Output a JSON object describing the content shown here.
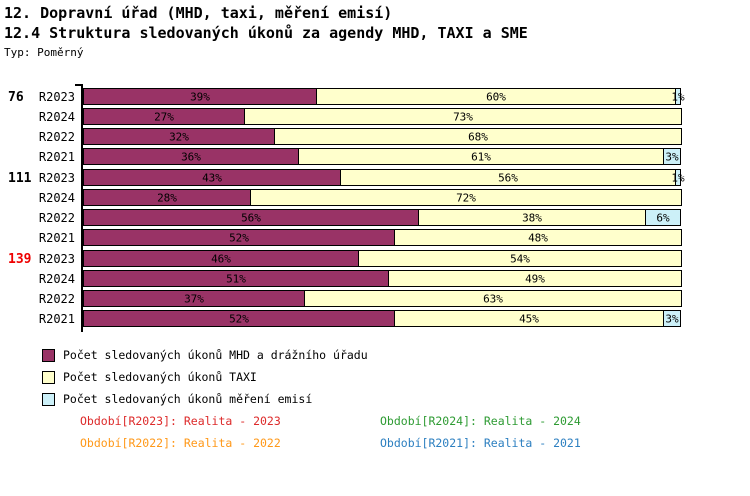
{
  "header": {
    "title_line1": "12. Dopravní úřad (MHD, taxi, měření emisí)",
    "title_line2": "12.4 Struktura sledovaných úkonů za agendy MHD, TAXI a SME",
    "type_label": "Typ: Poměrný"
  },
  "chart_data": {
    "type": "bar",
    "subtype": "horizontal-stacked-100-percent",
    "value_unit": "%",
    "xlim": [
      0,
      100
    ],
    "grid": false,
    "legend_position": "bottom-left",
    "series": [
      {
        "name": "Počet sledovaných úkonů MHD a drážního úřadu",
        "color": "#993366"
      },
      {
        "name": "Počet sledovaných úkonů TAXI",
        "color": "#ffffcc"
      },
      {
        "name": "Počet sledovaných úkonů měření emisí",
        "color": "#ccf0f8"
      }
    ],
    "groups": [
      {
        "group_label": "76",
        "group_label_color": "#000000",
        "rows": [
          {
            "period": "R2023",
            "values": [
              39,
              60,
              1
            ]
          },
          {
            "period": "R2024",
            "values": [
              27,
              73,
              0
            ]
          },
          {
            "period": "R2022",
            "values": [
              32,
              68,
              0
            ]
          },
          {
            "period": "R2021",
            "values": [
              36,
              61,
              3
            ]
          }
        ]
      },
      {
        "group_label": "111",
        "group_label_color": "#000000",
        "rows": [
          {
            "period": "R2023",
            "values": [
              43,
              56,
              1
            ]
          },
          {
            "period": "R2024",
            "values": [
              28,
              72,
              0
            ]
          },
          {
            "period": "R2022",
            "values": [
              56,
              38,
              6
            ]
          },
          {
            "period": "R2021",
            "values": [
              52,
              48,
              0
            ]
          }
        ]
      },
      {
        "group_label": "139",
        "group_label_color": "#ee0000",
        "rows": [
          {
            "period": "R2023",
            "values": [
              46,
              54,
              0
            ]
          },
          {
            "period": "R2024",
            "values": [
              51,
              49,
              0
            ]
          },
          {
            "period": "R2022",
            "values": [
              37,
              63,
              0
            ]
          },
          {
            "period": "R2021",
            "values": [
              52,
              45,
              3
            ]
          }
        ]
      }
    ]
  },
  "footnotes": [
    {
      "text": "Období[R2023]: Realita - 2023",
      "color": "#dd2a2a"
    },
    {
      "text": "Období[R2024]: Realita - 2024",
      "color": "#2e9b33"
    },
    {
      "text": "Období[R2022]: Realita - 2022",
      "color": "#ff9818"
    },
    {
      "text": "Období[R2021]: Realita - 2021",
      "color": "#2c7fc0"
    }
  ]
}
